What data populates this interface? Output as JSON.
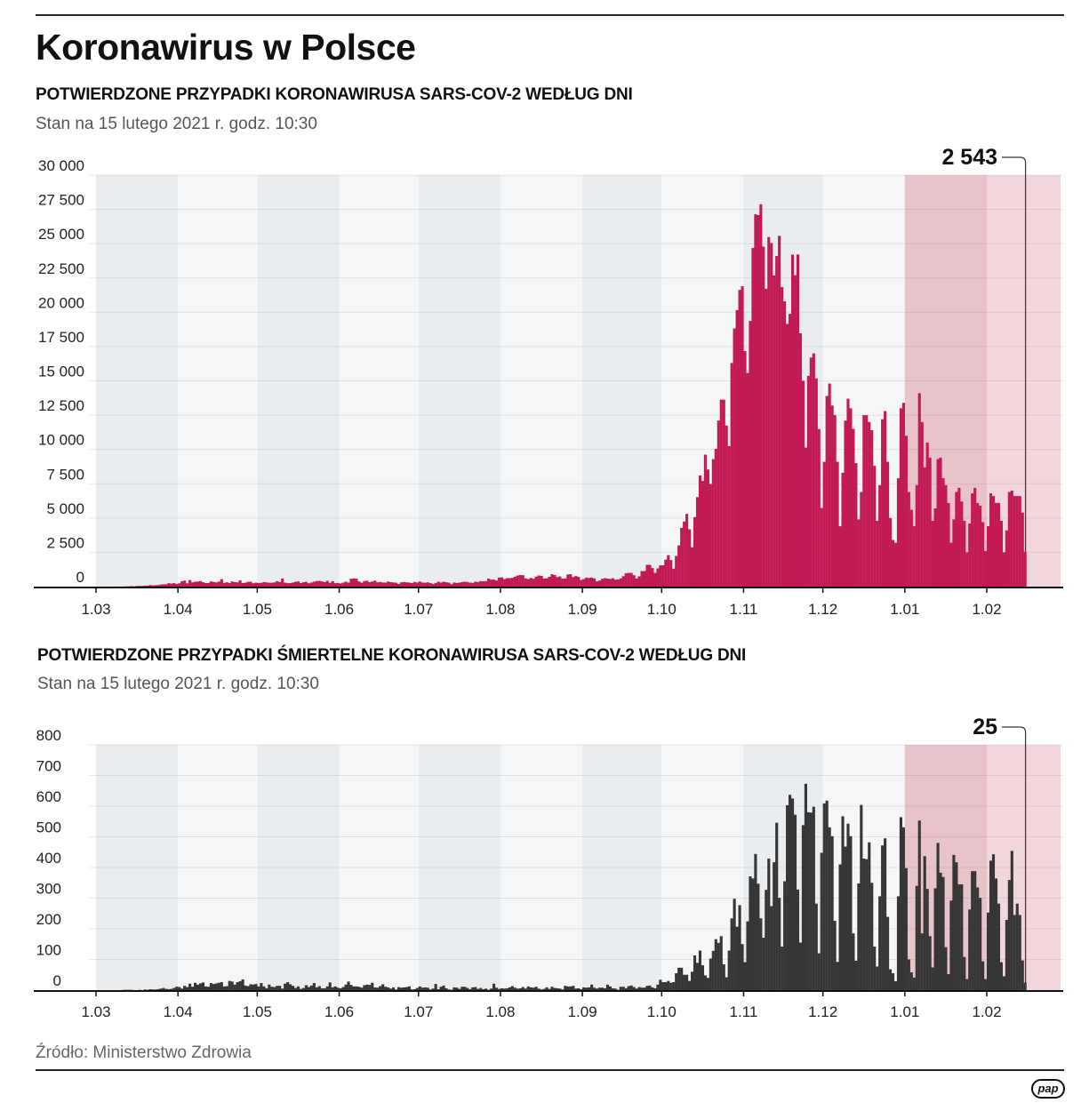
{
  "header": {
    "title": "Koronawirus w Polsce"
  },
  "footer": {
    "source": "Źródło: Ministerstwo Zdrowia",
    "logo": "pap"
  },
  "colors": {
    "cases": "#c21a55",
    "deaths": "#363636",
    "band_dark": "#e9edf0",
    "band_light": "#f4f6f8",
    "band_jan": "#e8c4ca",
    "band_feb": "#f1d6db"
  },
  "chart_data": [
    {
      "type": "bar",
      "title": "POTWIERDZONE PRZYPADKI KORONAWIRUSA SARS-COV-2 WEDŁUG DNI",
      "subtitle": "Stan na 15 lutego 2021 r. godz. 10:30",
      "ylim": [
        0,
        30000
      ],
      "y_ticks": [
        0,
        2500,
        5000,
        7500,
        10000,
        12500,
        15000,
        17500,
        20000,
        22500,
        25000,
        27500,
        30000
      ],
      "y_tick_labels": [
        "0",
        "2 500",
        "5 000",
        "7 500",
        "10 000",
        "12 500",
        "15 000",
        "17 500",
        "20 000",
        "22 500",
        "25 000",
        "27 500",
        "30 000"
      ],
      "x_tick_labels": [
        "1.03",
        "1.04",
        "1.05",
        "1.06",
        "1.07",
        "1.08",
        "1.09",
        "1.10",
        "1.11",
        "1.12",
        "1.01",
        "1.02"
      ],
      "grid": true,
      "annotation": "2 543",
      "color": "#c21a55",
      "daily_values_by_month": {
        "2020-03": [
          null,
          null,
          null,
          1,
          0,
          3,
          1,
          6,
          5,
          5,
          9,
          18,
          17,
          36,
          21,
          52,
          54,
          49,
          68,
          70,
          111,
          89,
          102,
          115,
          152,
          170,
          168,
          249,
          224,
          256,
          193
        ],
        "2020-04": [
          243,
          392,
          437,
          244,
          475,
          311,
          357,
          370,
          401,
          318,
          260,
          268,
          380,
          336,
          306,
          363,
          545,
          263,
          313,
          263,
          381,
          330,
          312,
          460,
          263,
          285,
          345,
          357,
          247,
          289
        ],
        "2020-05": [
          267,
          278,
          332,
          307,
          281,
          280,
          307,
          395,
          330,
          595,
          288,
          253,
          257,
          293,
          350,
          381,
          258,
          317,
          348,
          246,
          301,
          359,
          408,
          416,
          379,
          331,
          420,
          281,
          395,
          251,
          266
        ],
        "2020-06": [
          230,
          292,
          361,
          293,
          576,
          599,
          575,
          375,
          282,
          408,
          429,
          321,
          375,
          440,
          314,
          338,
          301,
          294,
          371,
          325,
          300,
          285,
          194,
          312,
          337,
          312,
          295,
          260,
          337,
          297
        ],
        "2020-07": [
          371,
          300,
          280,
          314,
          263,
          192,
          266,
          360,
          299,
          358,
          318,
          290,
          177,
          299,
          263,
          293,
          330,
          358,
          332,
          289,
          275,
          358,
          337,
          401,
          396,
          398,
          584,
          511,
          512,
          443,
          658
        ],
        "2020-08": [
          680,
          548,
          617,
          619,
          640,
          726,
          809,
          843,
          832,
          599,
          548,
          631,
          575,
          728,
          811,
          784,
          587,
          606,
          717,
          903,
          845,
          689,
          738,
          581,
          594,
          887,
          900,
          704,
          768,
          715,
          485
        ],
        "2020-09": [
          550,
          657,
          631,
          661,
          595,
          386,
          444,
          566,
          610,
          586,
          555,
          611,
          506,
          519,
          600,
          757,
          973,
          1002,
          1002,
          834,
          589,
          749,
          1136,
          1136,
          1587,
          1584,
          1350,
          999,
          1326,
          1552
        ],
        "2020-10": [
          1552,
          1967,
          2292,
          1934,
          1306,
          2236,
          3003,
          4280,
          4739,
          5300,
          4178,
          2863,
          5068,
          6526,
          8099,
          7705,
          9622,
          8536,
          7482,
          9291,
          10040,
          12107,
          13632,
          13628,
          11742,
          10241,
          16300,
          18820,
          20156,
          21629,
          21897
        ],
        "2020-11": [
          17171,
          15578,
          19364,
          24692,
          27143,
          27086,
          27875,
          24785,
          21713,
          25484,
          25050,
          22683,
          24100,
          25571,
          21840,
          20800,
          19152,
          19883,
          24200,
          22700,
          24213,
          18467,
          15002,
          10139,
          15362,
          16700,
          17000,
          15178,
          11483,
          5733
        ],
        "2020-12": [
          9100,
          13900,
          14800,
          13200,
          12500,
          9100,
          4400,
          8300,
          12100,
          13700,
          13000,
          11500,
          9000,
          4900,
          6900,
          12500,
          12500,
          12000,
          11400,
          8800,
          4800,
          7400,
          12200,
          12800,
          9100,
          5000,
          3400,
          3200,
          7900,
          13000,
          13400
        ],
        "2021-01": [
          11000,
          6900,
          5600,
          4400,
          7400,
          14100,
          12000,
          8700,
          10500,
          9400,
          4800,
          5700,
          9300,
          9400,
          7900,
          7400,
          6100,
          3200,
          4900,
          6900,
          7200,
          6200,
          4800,
          2500,
          4600,
          6800,
          7200,
          6100,
          5900,
          4700,
          2600
        ],
        "2021-02": [
          4400,
          6800,
          6600,
          6100,
          6100,
          4800,
          2500,
          4100,
          6900,
          7000,
          6600,
          6600,
          6600,
          5400,
          2543
        ]
      }
    },
    {
      "type": "bar",
      "title": "POTWIERDZONE PRZYPADKI ŚMIERTELNE KORONAWIRUSA SARS-COV-2 WEDŁUG DNI",
      "subtitle": "Stan na 15 lutego 2021 r. godz. 10:30",
      "ylim": [
        0,
        800
      ],
      "y_ticks": [
        0,
        100,
        200,
        300,
        400,
        500,
        600,
        700,
        800
      ],
      "y_tick_labels": [
        "0",
        "100",
        "200",
        "300",
        "400",
        "500",
        "600",
        "700",
        "800"
      ],
      "x_tick_labels": [
        "1.03",
        "1.04",
        "1.05",
        "1.06",
        "1.07",
        "1.08",
        "1.09",
        "1.10",
        "1.11",
        "1.12",
        "1.01",
        "1.02"
      ],
      "grid": true,
      "annotation": "25",
      "color": "#363636",
      "daily_values_by_month": {
        "2020-03": [
          null,
          null,
          null,
          0,
          0,
          0,
          0,
          0,
          0,
          0,
          1,
          1,
          1,
          1,
          0,
          0,
          1,
          0,
          2,
          1,
          3,
          2,
          2,
          3,
          5,
          7,
          4,
          3,
          4,
          7,
          11
        ],
        "2020-04": [
          10,
          5,
          14,
          10,
          21,
          11,
          24,
          18,
          22,
          25,
          12,
          11,
          23,
          20,
          22,
          24,
          26,
          12,
          13,
          30,
          28,
          18,
          26,
          29,
          35,
          15,
          13,
          19,
          18,
          20
        ],
        "2020-05": [
          12,
          23,
          12,
          6,
          18,
          11,
          10,
          14,
          14,
          5,
          21,
          26,
          19,
          14,
          7,
          12,
          4,
          7,
          16,
          10,
          15,
          23,
          9,
          13,
          6,
          6,
          12,
          25,
          9,
          12,
          8
        ],
        "2020-06": [
          6,
          10,
          18,
          28,
          17,
          12,
          12,
          11,
          8,
          16,
          18,
          17,
          24,
          9,
          8,
          13,
          19,
          11,
          9,
          5,
          9,
          2,
          10,
          8,
          9,
          10,
          12,
          2,
          3,
          7
        ],
        "2020-07": [
          12,
          8,
          9,
          8,
          2,
          5,
          20,
          3,
          11,
          15,
          6,
          2,
          1,
          9,
          8,
          4,
          11,
          11,
          7,
          3,
          9,
          10,
          4,
          7,
          3,
          5,
          1,
          5,
          21,
          8,
          4
        ],
        "2020-08": [
          6,
          5,
          6,
          9,
          13,
          8,
          5,
          6,
          10,
          5,
          12,
          9,
          8,
          11,
          5,
          2,
          4,
          9,
          4,
          11,
          7,
          6,
          5,
          2,
          14,
          12,
          12,
          14,
          5,
          6,
          3
        ],
        "2020-09": [
          9,
          8,
          9,
          18,
          8,
          5,
          8,
          8,
          6,
          18,
          12,
          6,
          5,
          1,
          11,
          11,
          6,
          13,
          15,
          10,
          5,
          10,
          8,
          8,
          14,
          15,
          9,
          6,
          18,
          34
        ],
        "2020-10": [
          26,
          26,
          30,
          24,
          26,
          55,
          73,
          73,
          50,
          50,
          30,
          60,
          113,
          89,
          129,
          81,
          48,
          40,
          103,
          128,
          166,
          154,
          176,
          84,
          42,
          129,
          234,
          298,
          207,
          277,
          150
        ],
        "2020-11": [
          91,
          224,
          371,
          364,
          444,
          347,
          234,
          171,
          327,
          429,
          274,
          417,
          546,
          301,
          142,
          355,
          603,
          637,
          625,
          572,
          328,
          155,
          538,
          673,
          580,
          579,
          598,
          282,
          120,
          448
        ],
        "2020-12": [
          609,
          618,
          531,
          502,
          226,
          92,
          410,
          567,
          468,
          543,
          502,
          185,
          96,
          348,
          604,
          429,
          427,
          482,
          350,
          142,
          77,
          306,
          472,
          495,
          239,
          68,
          55,
          29,
          306,
          564,
          531
        ],
        "2021-01": [
          398,
          100,
          58,
          41,
          340,
          553,
          185,
          437,
          330,
          176,
          74,
          332,
          480,
          383,
          369,
          140,
          52,
          292,
          441,
          417,
          345,
          345,
          108,
          36,
          263,
          388,
          388,
          335,
          301,
          94,
          36
        ],
        "2021-02": [
          253,
          422,
          443,
          364,
          282,
          91,
          45,
          229,
          359,
          454,
          245,
          282,
          245,
          97,
          25
        ]
      }
    }
  ]
}
